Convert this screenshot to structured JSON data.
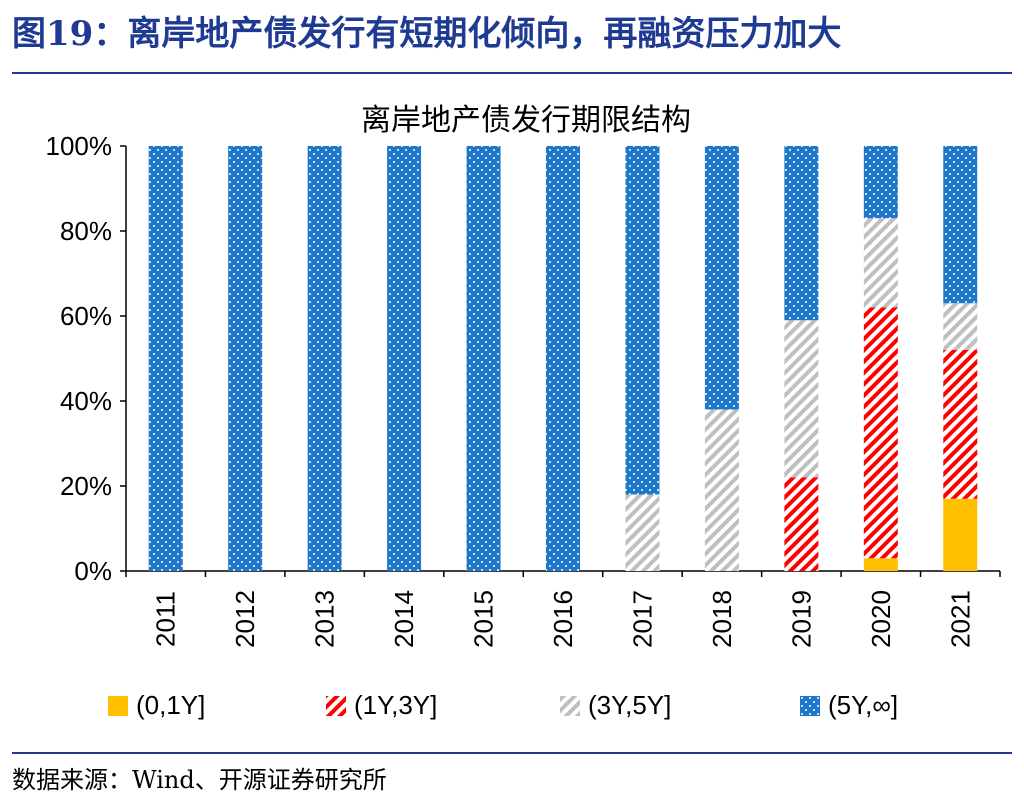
{
  "figure": {
    "title": "图19：离岸地产债发行有短期化倾向，再融资压力加大",
    "source": "数据来源：Wind、开源证券研究所"
  },
  "chart_data": {
    "type": "bar",
    "stacked": true,
    "title": "离岸地产债发行期限结构",
    "xlabel": "",
    "ylabel": "",
    "ylim": [
      0,
      100
    ],
    "yticks": [
      "0%",
      "20%",
      "40%",
      "60%",
      "80%",
      "100%"
    ],
    "categories": [
      "2011",
      "2012",
      "2013",
      "2014",
      "2015",
      "2016",
      "2017",
      "2018",
      "2019",
      "2020",
      "2021"
    ],
    "series": [
      {
        "name": "(0,1Y]",
        "color": "#FFC000",
        "pattern": "solid",
        "values": [
          0,
          0,
          0,
          0,
          0,
          0,
          0,
          0,
          0,
          3,
          17
        ]
      },
      {
        "name": "(1Y,3Y]",
        "color": "#FF0000",
        "pattern": "red-diagonal-stripes",
        "values": [
          0,
          0,
          0,
          0,
          0,
          0,
          0,
          0,
          22,
          59,
          35
        ]
      },
      {
        "name": "(3Y,5Y]",
        "color": "#BFBFBF",
        "pattern": "gray-diagonal-stripes",
        "values": [
          0,
          0,
          0,
          0,
          0,
          0,
          18,
          38,
          37,
          21,
          11
        ]
      },
      {
        "name": "(5Y,∞]",
        "color": "#1F77C9",
        "pattern": "blue-dots",
        "values": [
          100,
          100,
          100,
          100,
          100,
          100,
          82,
          62,
          41,
          17,
          37
        ]
      }
    ],
    "legend_position": "bottom",
    "grid": false
  }
}
